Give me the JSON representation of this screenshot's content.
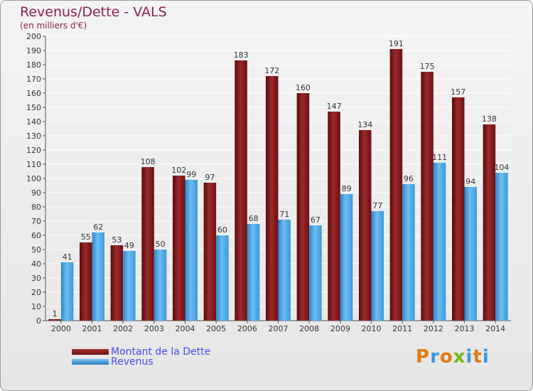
{
  "title": "Revenus/Dette - VALS",
  "subtitle": "(en milliers d'€)",
  "legend": [
    {
      "label": "Montant de la Dette",
      "color": "#6e0f10"
    },
    {
      "label": "Revenus",
      "color": "#3aa0e6"
    }
  ],
  "logo": {
    "letters": [
      "P",
      "r",
      "o",
      "x",
      "i",
      "t",
      "i"
    ],
    "colors": [
      "#e07b10",
      "#3a9ad9",
      "#e07b10",
      "#7ab51d",
      "#3a9ad9",
      "#e07b10",
      "#3a9ad9"
    ]
  },
  "chart_data": {
    "type": "bar",
    "categories": [
      "2000",
      "2001",
      "2002",
      "2003",
      "2004",
      "2005",
      "2006",
      "2007",
      "2008",
      "2009",
      "2010",
      "2011",
      "2012",
      "2013",
      "2014"
    ],
    "series": [
      {
        "name": "Montant de la Dette",
        "color": "#6e0f10",
        "values": [
          1,
          55,
          53,
          108,
          102,
          97,
          183,
          172,
          160,
          147,
          134,
          191,
          175,
          157,
          138
        ]
      },
      {
        "name": "Revenus",
        "color": "#3aa0e6",
        "values": [
          41,
          62,
          49,
          50,
          99,
          60,
          68,
          71,
          67,
          89,
          77,
          96,
          111,
          94,
          104
        ]
      }
    ],
    "ylim": [
      0,
      200
    ],
    "yticks": [
      0,
      10,
      20,
      30,
      40,
      50,
      60,
      70,
      80,
      90,
      100,
      110,
      120,
      130,
      140,
      150,
      160,
      170,
      180,
      190,
      200
    ],
    "grid": true,
    "legend_position": "bottom-left"
  }
}
